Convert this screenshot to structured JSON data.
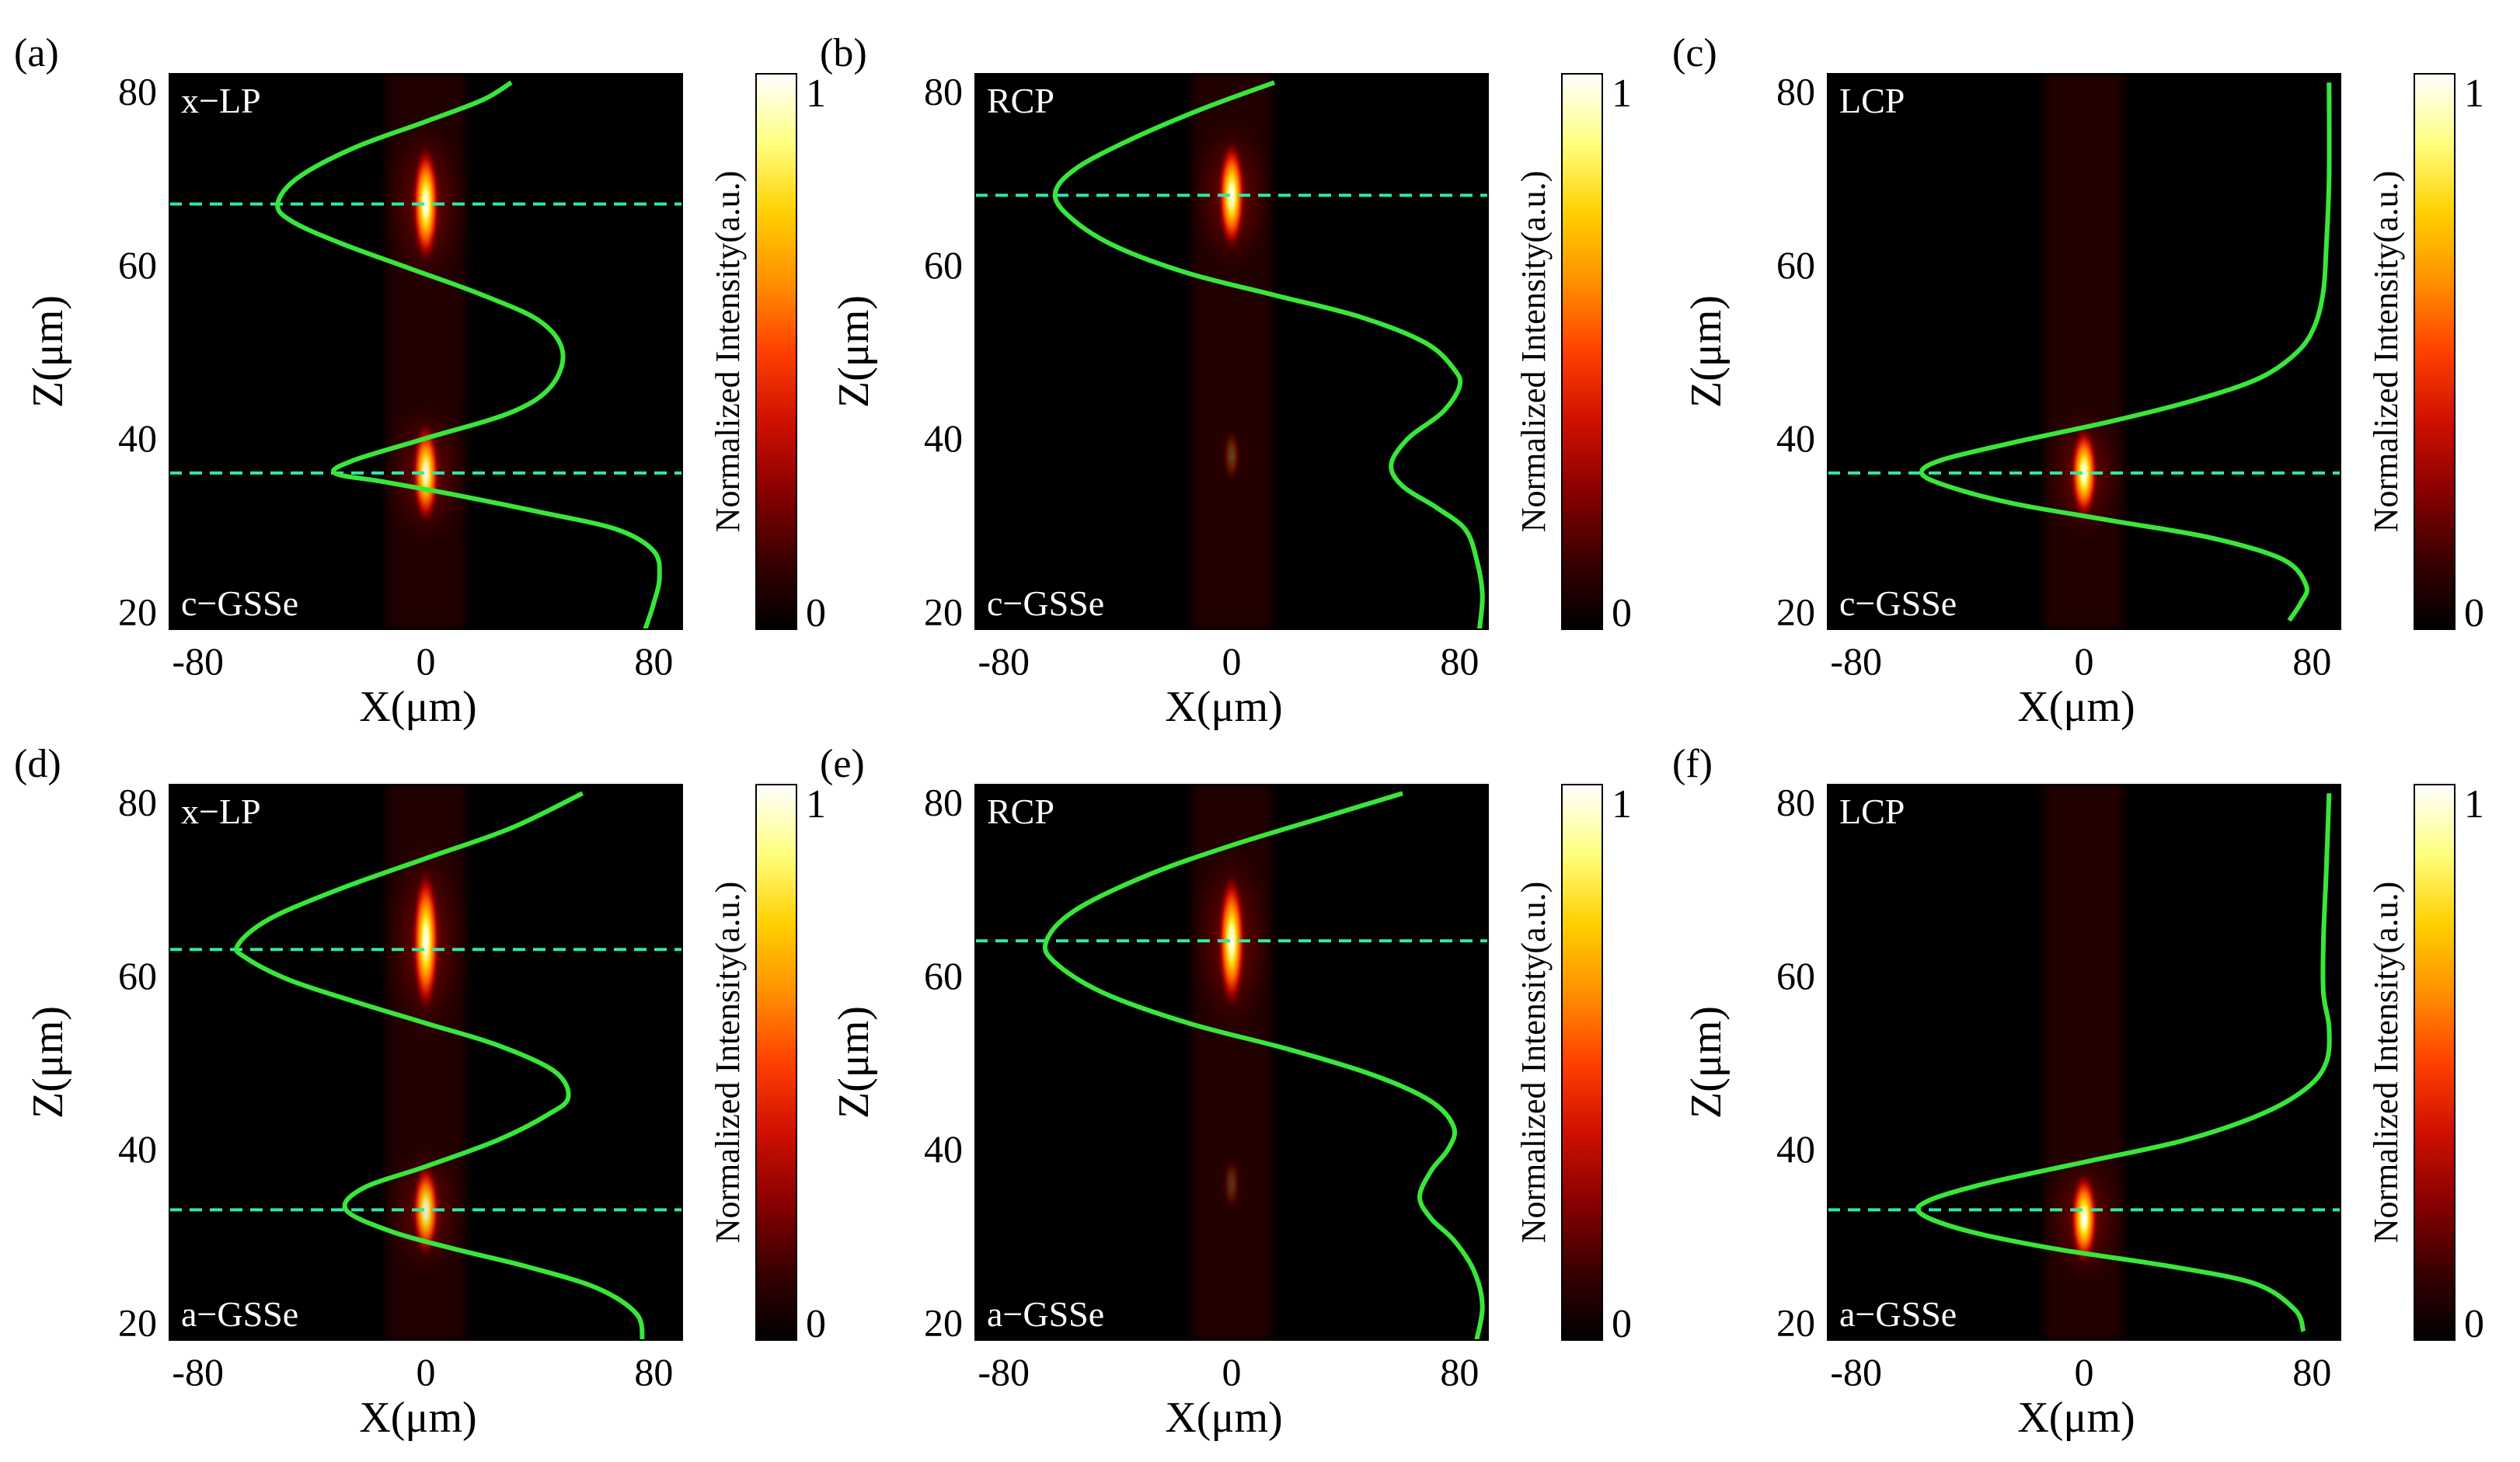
{
  "figure": {
    "x_axis_label": "X(μm)",
    "y_axis_label": "Z(μm)",
    "colorbar_label": "Normalized Intensity(a.u.)",
    "colorbar_max_label": "1",
    "colorbar_min_label": "0",
    "colormap": [
      "#000000",
      "#3a0000",
      "#8b0000",
      "#d01000",
      "#ff4000",
      "#ff9000",
      "#ffd000",
      "#ffff80",
      "#ffffff"
    ],
    "curve_color": "#39e639",
    "dashed_line_color": "#30e8a8",
    "background_color": "#000000"
  },
  "chart_data": [
    {
      "panel": "(a)",
      "polarization": "x−LP",
      "material": "c−GSSe",
      "type": "heatmap",
      "xlim": [
        -90,
        90
      ],
      "ylim": [
        18,
        82
      ],
      "xticks": [
        -80,
        0,
        80
      ],
      "yticks": [
        20,
        40,
        60,
        80
      ],
      "xtick_labels": [
        "-80",
        "0",
        "80"
      ],
      "ytick_labels": [
        "20",
        "40",
        "60",
        "80"
      ],
      "dashed_lines_z": [
        67,
        36
      ],
      "foci": [
        {
          "z": 67,
          "length": 14,
          "width": 5,
          "peak": 1.0
        },
        {
          "z": 36,
          "length": 12,
          "width": 5,
          "peak": 0.95
        }
      ],
      "curve": [
        [
          77,
          18
        ],
        [
          80,
          21
        ],
        [
          82,
          24
        ],
        [
          80,
          27
        ],
        [
          67,
          29.5
        ],
        [
          40,
          31.5
        ],
        [
          10,
          33.5
        ],
        [
          -15,
          35
        ],
        [
          -32,
          36
        ],
        [
          -25,
          37.5
        ],
        [
          0,
          40
        ],
        [
          30,
          43
        ],
        [
          44,
          46
        ],
        [
          48,
          50
        ],
        [
          40,
          53.5
        ],
        [
          20,
          56.5
        ],
        [
          -5,
          59.5
        ],
        [
          -30,
          62.5
        ],
        [
          -47,
          65
        ],
        [
          -52,
          67
        ],
        [
          -45,
          70
        ],
        [
          -25,
          73.5
        ],
        [
          0,
          76.5
        ],
        [
          20,
          79
        ],
        [
          30,
          81
        ]
      ]
    },
    {
      "panel": "(b)",
      "polarization": "RCP",
      "material": "c−GSSe",
      "type": "heatmap",
      "xlim": [
        -90,
        90
      ],
      "ylim": [
        18,
        82
      ],
      "xticks": [
        -80,
        0,
        80
      ],
      "yticks": [
        20,
        40,
        60,
        80
      ],
      "xtick_labels": [
        "-80",
        "0",
        "80"
      ],
      "ytick_labels": [
        "20",
        "40",
        "60",
        "80"
      ],
      "dashed_lines_z": [
        68
      ],
      "foci": [
        {
          "z": 68,
          "length": 13,
          "width": 5,
          "peak": 1.0
        },
        {
          "z": 38,
          "length": 6,
          "width": 3,
          "peak": 0.22
        }
      ],
      "curve": [
        [
          87,
          18
        ],
        [
          88,
          22
        ],
        [
          86,
          26
        ],
        [
          82,
          29.5
        ],
        [
          72,
          32
        ],
        [
          60,
          34.5
        ],
        [
          56,
          37
        ],
        [
          62,
          40
        ],
        [
          74,
          43
        ],
        [
          80,
          46
        ],
        [
          78,
          48
        ],
        [
          68,
          51
        ],
        [
          45,
          54
        ],
        [
          15,
          56.5
        ],
        [
          -15,
          59
        ],
        [
          -40,
          62
        ],
        [
          -55,
          65
        ],
        [
          -62,
          68
        ],
        [
          -55,
          71
        ],
        [
          -35,
          74.5
        ],
        [
          -10,
          78
        ],
        [
          15,
          81
        ]
      ]
    },
    {
      "panel": "(c)",
      "polarization": "LCP",
      "material": "c−GSSe",
      "type": "heatmap",
      "xlim": [
        -90,
        90
      ],
      "ylim": [
        18,
        82
      ],
      "xticks": [
        -80,
        0,
        80
      ],
      "yticks": [
        20,
        40,
        60,
        80
      ],
      "xtick_labels": [
        "-80",
        "0",
        "80"
      ],
      "ytick_labels": [
        "20",
        "40",
        "60",
        "80"
      ],
      "dashed_lines_z": [
        36
      ],
      "foci": [
        {
          "z": 36,
          "length": 11,
          "width": 5,
          "peak": 1.0
        }
      ],
      "curve": [
        [
          72,
          19
        ],
        [
          76,
          21
        ],
        [
          78,
          23
        ],
        [
          70,
          26
        ],
        [
          45,
          28.5
        ],
        [
          10,
          30.5
        ],
        [
          -25,
          32.5
        ],
        [
          -48,
          34.5
        ],
        [
          -57,
          36
        ],
        [
          -50,
          37.5
        ],
        [
          -25,
          39.5
        ],
        [
          10,
          42
        ],
        [
          40,
          44.5
        ],
        [
          62,
          47
        ],
        [
          75,
          50
        ],
        [
          81,
          53
        ],
        [
          84,
          57
        ],
        [
          85,
          62
        ],
        [
          86,
          70
        ],
        [
          86,
          81
        ]
      ]
    },
    {
      "panel": "(d)",
      "polarization": "x−LP",
      "material": "a−GSSe",
      "type": "heatmap",
      "xlim": [
        -90,
        90
      ],
      "ylim": [
        18,
        82
      ],
      "xticks": [
        -80,
        0,
        80
      ],
      "yticks": [
        20,
        40,
        60,
        80
      ],
      "xtick_labels": [
        "-80",
        "0",
        "80"
      ],
      "ytick_labels": [
        "20",
        "40",
        "60",
        "80"
      ],
      "dashed_lines_z": [
        63,
        33
      ],
      "foci": [
        {
          "z": 64,
          "length": 17,
          "width": 5,
          "peak": 1.0
        },
        {
          "z": 33,
          "length": 11,
          "width": 5,
          "peak": 0.9
        }
      ],
      "curve": [
        [
          76,
          18
        ],
        [
          74,
          21
        ],
        [
          60,
          24
        ],
        [
          35,
          26.5
        ],
        [
          10,
          28.5
        ],
        [
          -12,
          30.5
        ],
        [
          -28,
          33
        ],
        [
          -22,
          35.5
        ],
        [
          0,
          38
        ],
        [
          25,
          41
        ],
        [
          43,
          44
        ],
        [
          50,
          46
        ],
        [
          45,
          49
        ],
        [
          25,
          52
        ],
        [
          0,
          54.5
        ],
        [
          -25,
          57
        ],
        [
          -48,
          59.5
        ],
        [
          -63,
          62
        ],
        [
          -66,
          63.5
        ],
        [
          -55,
          66.5
        ],
        [
          -30,
          70
        ],
        [
          0,
          73.5
        ],
        [
          30,
          77
        ],
        [
          55,
          81
        ]
      ]
    },
    {
      "panel": "(e)",
      "polarization": "RCP",
      "material": "a−GSSe",
      "type": "heatmap",
      "xlim": [
        -90,
        90
      ],
      "ylim": [
        18,
        82
      ],
      "xticks": [
        -80,
        0,
        80
      ],
      "yticks": [
        20,
        40,
        60,
        80
      ],
      "xtick_labels": [
        "-80",
        "0",
        "80"
      ],
      "ytick_labels": [
        "20",
        "40",
        "60",
        "80"
      ],
      "dashed_lines_z": [
        64
      ],
      "foci": [
        {
          "z": 64,
          "length": 16,
          "width": 5,
          "peak": 1.0
        },
        {
          "z": 36,
          "length": 6,
          "width": 3,
          "peak": 0.18
        }
      ],
      "curve": [
        [
          86,
          18
        ],
        [
          88,
          22
        ],
        [
          85,
          26
        ],
        [
          78,
          29.5
        ],
        [
          70,
          32
        ],
        [
          66,
          34.5
        ],
        [
          70,
          37.5
        ],
        [
          76,
          40
        ],
        [
          78,
          42.5
        ],
        [
          70,
          45.5
        ],
        [
          50,
          48.5
        ],
        [
          20,
          51.5
        ],
        [
          -15,
          54.5
        ],
        [
          -45,
          58
        ],
        [
          -62,
          61.5
        ],
        [
          -65,
          64
        ],
        [
          -55,
          67.5
        ],
        [
          -30,
          71.5
        ],
        [
          0,
          75
        ],
        [
          35,
          78.5
        ],
        [
          60,
          81
        ]
      ]
    },
    {
      "panel": "(f)",
      "polarization": "LCP",
      "material": "a−GSSe",
      "type": "heatmap",
      "xlim": [
        -90,
        90
      ],
      "ylim": [
        18,
        82
      ],
      "xticks": [
        -80,
        0,
        80
      ],
      "yticks": [
        20,
        40,
        60,
        80
      ],
      "xtick_labels": [
        "-80",
        "0",
        "80"
      ],
      "ytick_labels": [
        "20",
        "40",
        "60",
        "80"
      ],
      "dashed_lines_z": [
        33
      ],
      "foci": [
        {
          "z": 32,
          "length": 11,
          "width": 5,
          "peak": 1.0
        }
      ],
      "curve": [
        [
          77,
          19
        ],
        [
          74,
          21.5
        ],
        [
          60,
          24.5
        ],
        [
          30,
          26.5
        ],
        [
          -10,
          28.5
        ],
        [
          -40,
          30.5
        ],
        [
          -57,
          32.5
        ],
        [
          -55,
          34
        ],
        [
          -35,
          36
        ],
        [
          0,
          38.5
        ],
        [
          35,
          41
        ],
        [
          62,
          44
        ],
        [
          78,
          47
        ],
        [
          85,
          50
        ],
        [
          86,
          54
        ],
        [
          84,
          58
        ],
        [
          84,
          64
        ],
        [
          85,
          72
        ],
        [
          86,
          81
        ]
      ]
    }
  ]
}
